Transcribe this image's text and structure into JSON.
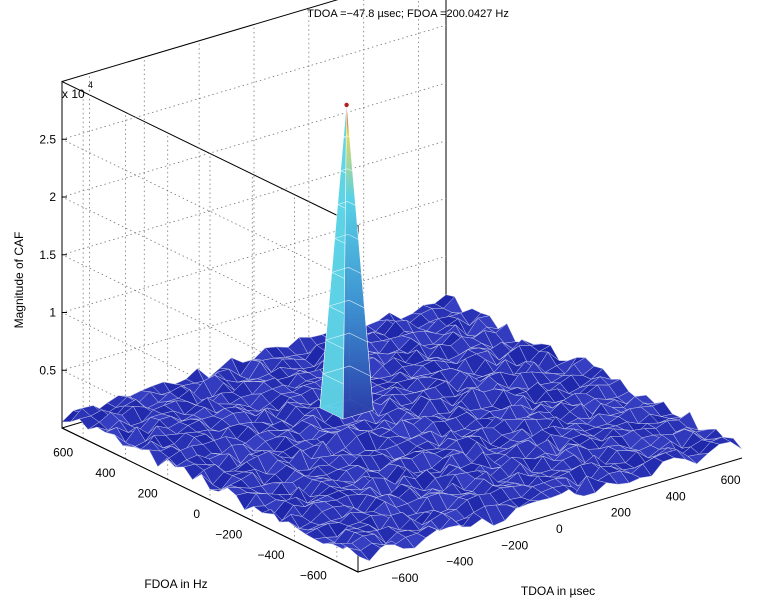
{
  "chart_data": {
    "type": "surface",
    "title": "TDOA =−47.8 µsec; FDOA =200.0427 Hz",
    "xlabel": "TDOA in µsec",
    "ylabel": "FDOA in Hz",
    "zlabel": "Magnitude of CAF",
    "z_multiplier": "x 10",
    "z_exponent": "4",
    "xlim": [
      -700,
      700
    ],
    "ylim": [
      -700,
      700
    ],
    "zlim": [
      0,
      30000
    ],
    "x_ticks": [
      "−600",
      "−400",
      "−200",
      "0",
      "200",
      "400",
      "600"
    ],
    "y_ticks": [
      "600",
      "400",
      "200",
      "0",
      "−200",
      "−400",
      "−600"
    ],
    "z_ticks": [
      "0.5",
      "1",
      "1.5",
      "2",
      "2.5"
    ],
    "peak": {
      "tdoa": -47.8,
      "fdoa": 200.0427,
      "magnitude": 28000
    },
    "noise_floor": 1500,
    "grid": true,
    "colors": {
      "surface_low": "#1a1f8c",
      "surface_mid": "#40c8e0",
      "peak_tip": "#b02020"
    }
  }
}
